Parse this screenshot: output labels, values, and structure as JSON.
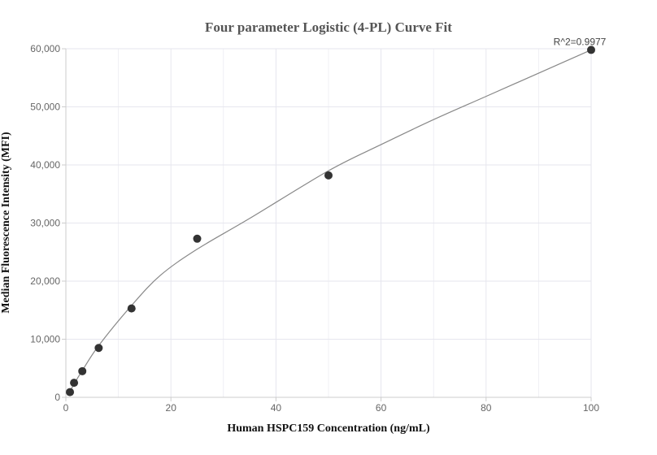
{
  "chart_data": {
    "type": "scatter",
    "title": "Four parameter Logistic (4-PL) Curve Fit",
    "xlabel": "Human HSPC159 Concentration (ng/mL)",
    "ylabel": "Median Fluorescence Intensity (MFI)",
    "xlim": [
      0,
      100
    ],
    "ylim": [
      0,
      60000
    ],
    "x_ticks": [
      0,
      20,
      40,
      60,
      80,
      100
    ],
    "x_tick_labels": [
      "0",
      "20",
      "40",
      "60",
      "80",
      "100"
    ],
    "y_ticks": [
      0,
      10000,
      20000,
      30000,
      40000,
      50000,
      60000
    ],
    "y_tick_labels": [
      "0",
      "10,000",
      "20,000",
      "30,000",
      "40,000",
      "50,000",
      "60,000"
    ],
    "grid": true,
    "points": {
      "x": [
        0.78,
        1.56,
        3.13,
        6.25,
        12.5,
        25,
        50,
        100
      ],
      "y": [
        900,
        2500,
        4500,
        8500,
        15300,
        27300,
        38200,
        59800
      ]
    },
    "fit_curve": {
      "x": [
        0.78,
        1.56,
        3.13,
        6.25,
        12.5,
        18,
        25,
        35,
        50,
        60,
        70,
        80,
        90,
        100
      ],
      "y": [
        1000,
        2300,
        4600,
        8900,
        15800,
        21000,
        25500,
        30800,
        39000,
        43500,
        47800,
        51800,
        55800,
        59800
      ]
    },
    "annotation": "R^2=0.9977",
    "colors": {
      "point": "#333333",
      "curve": "#888888",
      "grid": "#e6e6ee",
      "axis": "#cccccc"
    }
  }
}
